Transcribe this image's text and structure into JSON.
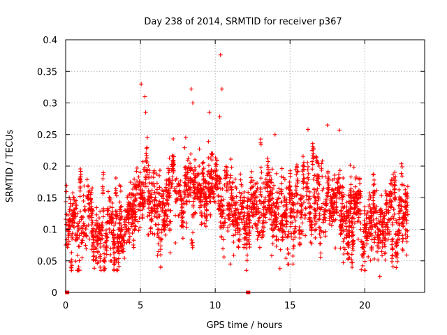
{
  "chart_data": {
    "type": "scatter",
    "title": "Day 238 of 2014, SRMTID for receiver p367",
    "xlabel": "GPS time / hours",
    "ylabel": "SRMTID / TECUs",
    "xlim": [
      0,
      24
    ],
    "ylim": [
      0,
      0.4
    ],
    "x_ticks": [
      0,
      5,
      10,
      15,
      20
    ],
    "x_tick_labels": [
      "0",
      "5",
      "10",
      "15",
      "20"
    ],
    "y_ticks": [
      0,
      0.05,
      0.1,
      0.15,
      0.2,
      0.25,
      0.3,
      0.35,
      0.4
    ],
    "y_tick_labels": [
      "0",
      "0.05",
      "0.1",
      "0.15",
      "0.2",
      "0.25",
      "0.3",
      "0.35",
      "0.4"
    ],
    "grid": true,
    "marker": "+",
    "series_color": "#ff0000",
    "series": [
      {
        "name": "SRMTID",
        "description_of_distribution": "dense scatter, about 2000 '+' points",
        "profile_hours": [
          0,
          1,
          2,
          3,
          4,
          5,
          6,
          7,
          8,
          9,
          10,
          11,
          12,
          13,
          14,
          15,
          16,
          17,
          18,
          19,
          20,
          21,
          22,
          22.8
        ],
        "profile_median": [
          0.12,
          0.11,
          0.12,
          0.11,
          0.1,
          0.16,
          0.15,
          0.16,
          0.15,
          0.16,
          0.15,
          0.14,
          0.13,
          0.12,
          0.12,
          0.11,
          0.17,
          0.16,
          0.14,
          0.12,
          0.11,
          0.11,
          0.12,
          0.11
        ],
        "outliers": [
          {
            "x": 5.05,
            "y": 0.33
          },
          {
            "x": 5.3,
            "y": 0.31
          },
          {
            "x": 5.35,
            "y": 0.285
          },
          {
            "x": 8.4,
            "y": 0.322
          },
          {
            "x": 8.5,
            "y": 0.3
          },
          {
            "x": 9.6,
            "y": 0.285
          },
          {
            "x": 10.35,
            "y": 0.376
          },
          {
            "x": 10.45,
            "y": 0.322
          },
          {
            "x": 10.3,
            "y": 0.278
          },
          {
            "x": 14.0,
            "y": 0.25
          },
          {
            "x": 16.2,
            "y": 0.258
          },
          {
            "x": 17.5,
            "y": 0.265
          },
          {
            "x": 18.3,
            "y": 0.257
          },
          {
            "x": 21.0,
            "y": 0.025
          },
          {
            "x": 11.0,
            "y": 0.045
          },
          {
            "x": 2.3,
            "y": 0.04
          },
          {
            "x": 15.2,
            "y": 0.045
          }
        ],
        "zero_points": [
          {
            "x": 0.1,
            "y": 0
          },
          {
            "x": 12.2,
            "y": 0
          }
        ]
      }
    ]
  }
}
